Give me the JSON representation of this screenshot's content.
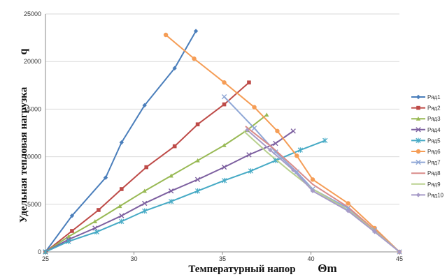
{
  "chart_data": {
    "type": "line",
    "xlabel": "Температурный напор",
    "xlabel_symbol": "Θm",
    "ylabel": "Удельная тепловая нагрузка",
    "ylabel_symbol": "q",
    "xlim": [
      25,
      45
    ],
    "ylim": [
      0,
      25000
    ],
    "xticks": [
      "25",
      "30",
      "35",
      "40",
      "45"
    ],
    "yticks": [
      "0",
      "5000",
      "10000",
      "15000",
      "20000",
      "25000"
    ],
    "grid": "horizontal",
    "legend_position": "right",
    "series": [
      {
        "name": "Ряд1",
        "color": "#4a7ebb",
        "marker": "diamond",
        "points": [
          [
            25,
            0
          ],
          [
            26.5,
            3800
          ],
          [
            28.4,
            7800
          ],
          [
            29.3,
            11500
          ],
          [
            30.6,
            15400
          ],
          [
            32.3,
            19300
          ],
          [
            33.5,
            23200
          ]
        ]
      },
      {
        "name": "Ряд2",
        "color": "#be4b48",
        "marker": "square",
        "points": [
          [
            25,
            0
          ],
          [
            26.5,
            2200
          ],
          [
            28,
            4400
          ],
          [
            29.3,
            6600
          ],
          [
            30.7,
            8900
          ],
          [
            32.3,
            11100
          ],
          [
            33.6,
            13400
          ],
          [
            35.1,
            15500
          ],
          [
            36.5,
            17800
          ]
        ]
      },
      {
        "name": "Ряд3",
        "color": "#98b954",
        "marker": "triangle",
        "points": [
          [
            25,
            0
          ],
          [
            26.3,
            1600
          ],
          [
            27.8,
            3200
          ],
          [
            29.2,
            4800
          ],
          [
            30.6,
            6400
          ],
          [
            32.1,
            8000
          ],
          [
            33.6,
            9600
          ],
          [
            35.1,
            11200
          ],
          [
            36.4,
            12800
          ],
          [
            37.5,
            14400
          ]
        ]
      },
      {
        "name": "Ряд4",
        "color": "#7d60a0",
        "marker": "x",
        "points": [
          [
            25,
            0
          ],
          [
            26.3,
            1300
          ],
          [
            27.8,
            2500
          ],
          [
            29.3,
            3800
          ],
          [
            30.6,
            5100
          ],
          [
            32.1,
            6400
          ],
          [
            33.6,
            7600
          ],
          [
            35.1,
            8900
          ],
          [
            36.5,
            10200
          ],
          [
            38,
            11400
          ],
          [
            39,
            12700
          ]
        ]
      },
      {
        "name": "Ряд5",
        "color": "#46aac5",
        "marker": "star",
        "points": [
          [
            25,
            0
          ],
          [
            26.3,
            1100
          ],
          [
            27.9,
            2100
          ],
          [
            29.3,
            3200
          ],
          [
            30.6,
            4300
          ],
          [
            32.1,
            5300
          ],
          [
            33.6,
            6400
          ],
          [
            35.1,
            7500
          ],
          [
            36.6,
            8500
          ],
          [
            38,
            9600
          ],
          [
            39.4,
            10700
          ],
          [
            40.8,
            11700
          ]
        ]
      },
      {
        "name": "Ряд6",
        "color": "#f59d56",
        "marker": "circle",
        "points": [
          [
            31.8,
            22800
          ],
          [
            33.4,
            20300
          ],
          [
            35.1,
            17800
          ],
          [
            36.8,
            15200
          ],
          [
            38.1,
            12700
          ],
          [
            39.2,
            10100
          ],
          [
            40.1,
            7600
          ],
          [
            42.1,
            5100
          ],
          [
            43.6,
            2500
          ],
          [
            45,
            0
          ]
        ]
      },
      {
        "name": "Ряд7",
        "color": "#8fa7d6",
        "marker": "x",
        "points": [
          [
            35.1,
            16300
          ],
          [
            36.8,
            13000
          ],
          [
            38,
            10500
          ],
          [
            39.2,
            8400
          ],
          [
            40.1,
            6600
          ],
          [
            42.1,
            4600
          ],
          [
            43.6,
            2300
          ],
          [
            45,
            0
          ]
        ]
      },
      {
        "name": "Ряд8",
        "color": "#d98c8a",
        "marker": "none",
        "points": [
          [
            36.3,
            13200
          ],
          [
            37.8,
            11000
          ],
          [
            39,
            9000
          ],
          [
            40.1,
            7100
          ],
          [
            42.1,
            4700
          ],
          [
            43.6,
            2300
          ],
          [
            45,
            0
          ]
        ]
      },
      {
        "name": "Ряд9",
        "color": "#b9d18f",
        "marker": "none",
        "points": [
          [
            36.2,
            12700
          ],
          [
            37.5,
            10500
          ],
          [
            38.8,
            8500
          ],
          [
            40.1,
            6600
          ],
          [
            42.1,
            4400
          ],
          [
            43.6,
            2200
          ],
          [
            45,
            0
          ]
        ]
      },
      {
        "name": "Ряд10",
        "color": "#a79bc8",
        "marker": "diamond",
        "points": [
          [
            36.4,
            12800
          ],
          [
            37.7,
            10700
          ],
          [
            39,
            8600
          ],
          [
            40.1,
            6400
          ],
          [
            42.1,
            4300
          ],
          [
            43.6,
            2100
          ],
          [
            45,
            0
          ]
        ]
      }
    ]
  }
}
